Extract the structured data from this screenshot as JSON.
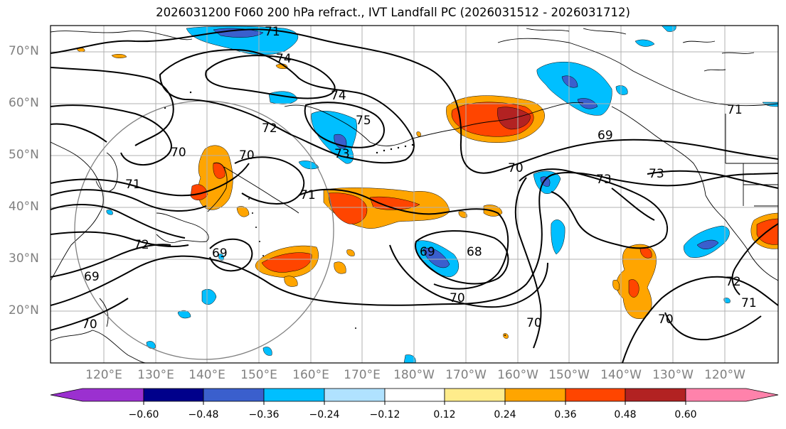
{
  "title": "2026031200 F060 200 hPa refract., IVT Landfall PC (2026031512 - 2026031712)",
  "lat_labels": [
    "70°N",
    "60°N",
    "50°N",
    "40°N",
    "30°N",
    "20°N"
  ],
  "lon_labels": [
    "120°E",
    "130°E",
    "140°E",
    "150°E",
    "160°E",
    "170°E",
    "180°W",
    "170°W",
    "160°W",
    "150°W",
    "140°W",
    "130°W",
    "120°W"
  ],
  "contour_labels": [
    "71",
    "74",
    "74",
    "75",
    "72",
    "70",
    "70",
    "71",
    "71",
    "72",
    "69",
    "69",
    "70",
    "73",
    "69",
    "68",
    "70",
    "69",
    "73",
    "70",
    "73",
    "72",
    "71",
    "70",
    "70",
    "71"
  ],
  "colorbar": {
    "ticks": [
      "−0.60",
      "−0.48",
      "−0.36",
      "−0.24",
      "−0.12",
      "0.12",
      "0.24",
      "0.36",
      "0.48",
      "0.60"
    ],
    "colors": [
      "#9b30d0",
      "#00008b",
      "#3a5fcd",
      "#00bfff",
      "#b0e2ff",
      "#ffffff",
      "#ffec8b",
      "#ffa500",
      "#ff4500",
      "#b22222",
      "#ff82ab"
    ]
  }
}
